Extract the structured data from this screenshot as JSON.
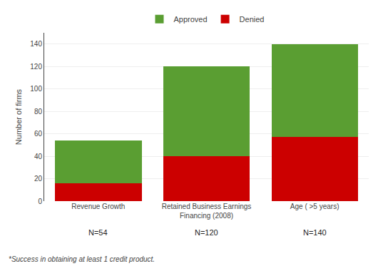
{
  "chart_data": {
    "type": "bar",
    "stacked": true,
    "categories": [
      "Revenue Growth",
      "Retained Business Earnings\nFinancing (2008)",
      "Age ( >5 years)"
    ],
    "series": [
      {
        "name": "Denied",
        "color": "#cc0000",
        "values": [
          16,
          40,
          57
        ]
      },
      {
        "name": "Approved",
        "color": "#5a9e32",
        "values": [
          38,
          80,
          83
        ]
      }
    ],
    "ylabel": "Number of firms",
    "ylim": [
      0,
      150
    ],
    "yticks": [
      0,
      20,
      40,
      60,
      80,
      100,
      120,
      140
    ],
    "grid": true,
    "legend": "top",
    "annotations": [
      {
        "text": "N=54",
        "category": "Revenue Growth"
      },
      {
        "text": "N=120",
        "category": "Retained Business Earnings\nFinancing (2008)"
      },
      {
        "text": "N=140",
        "category": "Age ( >5 years)"
      },
      {
        "text": "*Success in obtaining at least 1 credit product."
      }
    ]
  }
}
